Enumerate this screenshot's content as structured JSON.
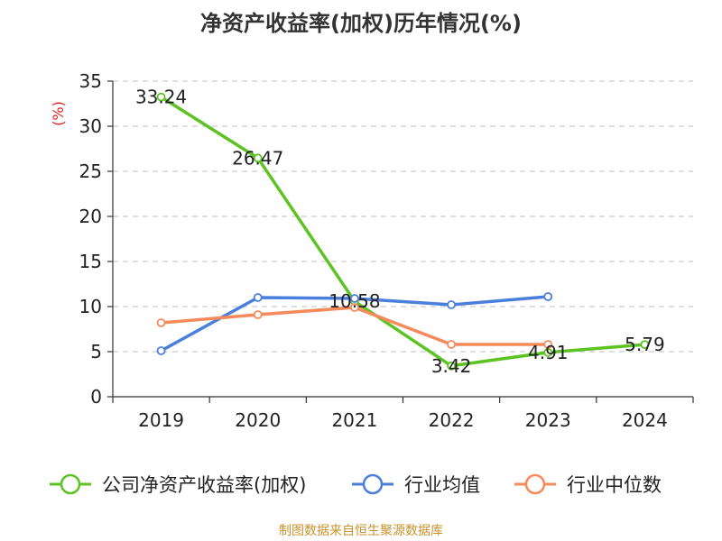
{
  "chart_data": {
    "type": "line",
    "title": "净资产收益率(加权)历年情况(%)",
    "ylabel": "(%)",
    "xlabel": "",
    "categories": [
      "2019",
      "2020",
      "2021",
      "2022",
      "2023",
      "2024"
    ],
    "ylim": [
      0,
      35
    ],
    "yticks": [
      0,
      5,
      10,
      15,
      20,
      25,
      30,
      35
    ],
    "grid": true,
    "legend_position": "bottom",
    "series": [
      {
        "name": "公司净资产收益率(加权)",
        "color": "#5cc322",
        "values": [
          33.24,
          26.47,
          10.58,
          3.42,
          4.91,
          5.79
        ],
        "labels": [
          "33.24",
          "26.47",
          "10.58",
          "3.42",
          "4.91",
          "5.79"
        ]
      },
      {
        "name": "行业均值",
        "color": "#4a7fdc",
        "values": [
          5.1,
          11.0,
          10.9,
          10.2,
          11.1,
          null
        ]
      },
      {
        "name": "行业中位数",
        "color": "#f58b5b",
        "values": [
          8.2,
          9.1,
          9.9,
          5.8,
          5.8,
          null
        ]
      }
    ]
  },
  "footer": {
    "text": "制图数据来自恒生聚源数据库",
    "color": "#c8922a"
  },
  "colors": {
    "axis": "#333333",
    "grid": "#cccccc",
    "ylabel": "#e02020",
    "text": "#222222"
  }
}
